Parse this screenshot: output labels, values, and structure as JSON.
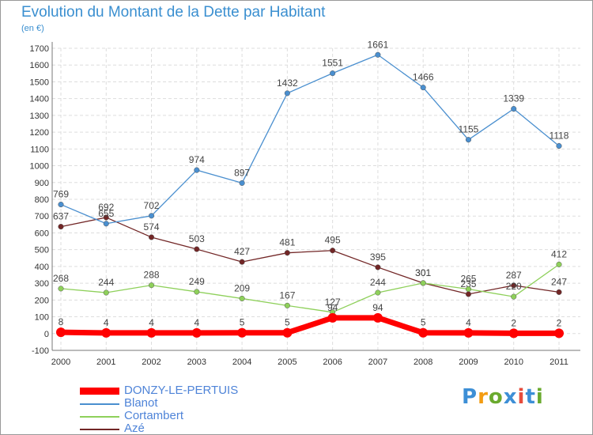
{
  "title": "Evolution du Montant de la Dette par Habitant",
  "unit": "(en €)",
  "logo": {
    "text": "Proxiti",
    "colors": [
      "#3d8fd6",
      "#f39c12",
      "#6aaa2e",
      "#3d8fd6",
      "#e74c3c",
      "#3d8fd6",
      "#6aaa2e"
    ]
  },
  "chart_data": {
    "type": "line",
    "categories": [
      "2000",
      "2001",
      "2002",
      "2003",
      "2004",
      "2005",
      "2006",
      "2007",
      "2008",
      "2009",
      "2010",
      "2011"
    ],
    "ylim": [
      -100,
      1700
    ],
    "yticks": [
      -100,
      0,
      100,
      200,
      300,
      400,
      500,
      600,
      700,
      800,
      900,
      1000,
      1100,
      1200,
      1300,
      1400,
      1500,
      1600,
      1700
    ],
    "grid": true,
    "legend_position": "bottom-left",
    "series": [
      {
        "name": "Azé",
        "color": "#722626",
        "values": [
          637,
          692,
          574,
          503,
          427,
          481,
          495,
          395,
          301,
          235,
          287,
          247
        ],
        "labels": [
          "637",
          "692",
          "574",
          "503",
          "427",
          "481",
          "495",
          "395",
          "301",
          "235",
          "287",
          "247"
        ]
      },
      {
        "name": "Cortambert",
        "color": "#8ed05a",
        "values": [
          268,
          244,
          288,
          249,
          209,
          167,
          127,
          244,
          301,
          265,
          220,
          412
        ],
        "labels": [
          "268",
          "244",
          "288",
          "249",
          "209",
          "167",
          "127",
          "244",
          "301",
          "265",
          "220",
          "412"
        ]
      },
      {
        "name": "Blanot",
        "color": "#4a8fcf",
        "values": [
          769,
          655,
          702,
          974,
          897,
          1432,
          1551,
          1661,
          1466,
          1155,
          1339,
          1118
        ],
        "labels": [
          "769",
          "655",
          "702",
          "974",
          "897",
          "1432",
          "1551",
          "1661",
          "1466",
          "1155",
          "1339",
          "1118"
        ]
      },
      {
        "name": "DONZY-LE-PERTUIS",
        "color": "#ff0000",
        "values": [
          8,
          4,
          4,
          4,
          5,
          5,
          94,
          94,
          5,
          4,
          2,
          2
        ],
        "labels": [
          "8",
          "4",
          "4",
          "4",
          "5",
          "5",
          "94",
          "94",
          "5",
          "4",
          "2",
          "2"
        ]
      }
    ],
    "legend": [
      "DONZY-LE-PERTUIS",
      "Blanot",
      "Cortambert",
      "Azé"
    ]
  }
}
